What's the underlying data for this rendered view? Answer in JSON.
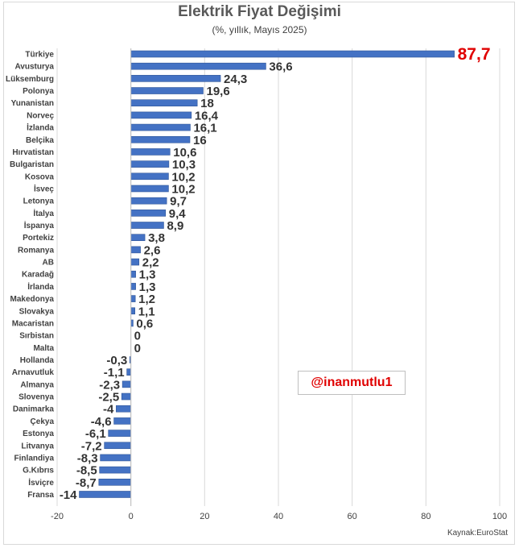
{
  "chart_data": {
    "type": "bar",
    "orientation": "horizontal",
    "title": "Elektrik Fiyat Değişimi",
    "subtitle": "(%, yıllık, Mayıs 2025)",
    "categories": [
      "Türkiye",
      "Avusturya",
      "Lüksemburg",
      "Polonya",
      "Yunanistan",
      "Norveç",
      "İzlanda",
      "Belçika",
      "Hırvatistan",
      "Bulgaristan",
      "Kosova",
      "İsveç",
      "Letonya",
      "İtalya",
      "İspanya",
      "Portekiz",
      "Romanya",
      "AB",
      "Karadağ",
      "İrlanda",
      "Makedonya",
      "Slovakya",
      "Macaristan",
      "Sırbistan",
      "Malta",
      "Hollanda",
      "Arnavutluk",
      "Almanya",
      "Slovenya",
      "Danimarka",
      "Çekya",
      "Estonya",
      "Litvanya",
      "Finlandiya",
      "G.Kıbrıs",
      "İsviçre",
      "Fransa"
    ],
    "values": [
      87.7,
      36.6,
      24.3,
      19.6,
      18,
      16.4,
      16.1,
      16,
      10.6,
      10.3,
      10.2,
      10.2,
      9.7,
      9.4,
      8.9,
      3.8,
      2.6,
      2.2,
      1.3,
      1.3,
      1.2,
      1.1,
      0.6,
      0,
      0,
      -0.3,
      -1.1,
      -2.3,
      -2.5,
      -4,
      -4.6,
      -6.1,
      -7.2,
      -8.3,
      -8.5,
      -8.7,
      -14
    ],
    "value_labels": [
      "87,7",
      "36,6",
      "24,3",
      "19,6",
      "18",
      "16,4",
      "16,1",
      "16",
      "10,6",
      "10,3",
      "10,2",
      "10,2",
      "9,7",
      "9,4",
      "8,9",
      "3,8",
      "2,6",
      "2,2",
      "1,3",
      "1,3",
      "1,2",
      "1,1",
      "0,6",
      "0",
      "0",
      "-0,3",
      "-1,1",
      "-2,3",
      "-2,5",
      "-4",
      "-4,6",
      "-6,1",
      "-7,2",
      "-8,3",
      "-8,5",
      "-8,7",
      "-14"
    ],
    "xlim": [
      -20,
      100
    ],
    "xticks": [
      -20,
      0,
      20,
      40,
      60,
      80,
      100
    ],
    "xlabel": "",
    "ylabel": "",
    "grid": true,
    "colors": {
      "bar": "#4472c4",
      "highlight_label": "#e00000",
      "label": "#333333",
      "grid": "#d9d9d9"
    }
  },
  "watermark": "@inanmutlu1",
  "source": "Kaynak:EuroStat"
}
